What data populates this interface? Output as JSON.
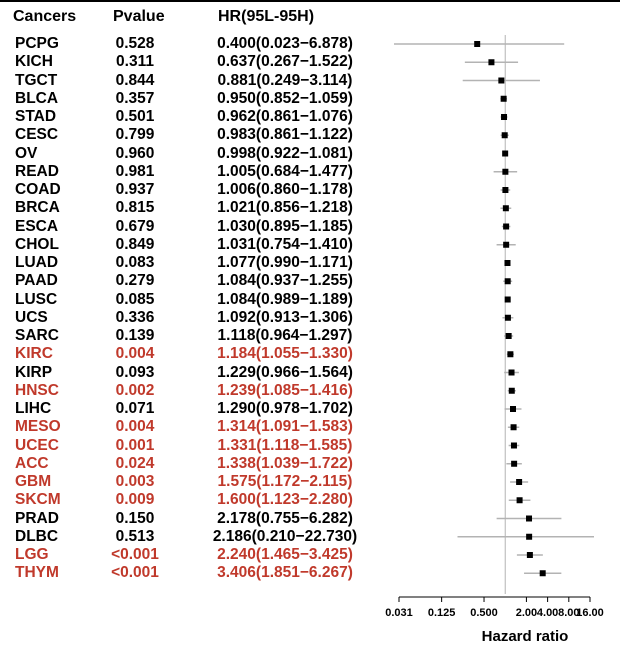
{
  "headers": {
    "cancer": "Cancers",
    "pvalue": "Pvalue",
    "hr": "HR(95L-95H)"
  },
  "colors": {
    "significant": "#c0392b",
    "normal": "#000000",
    "ci_line": "#b3b3b3",
    "ref_line": "#b3b3b3",
    "point": "#000000"
  },
  "chart_data": {
    "type": "forest",
    "xlabel": "Hazard ratio",
    "xscale": "log2",
    "xticks": [
      0.031,
      0.125,
      0.5,
      2.0,
      4.0,
      8.0,
      16.0
    ],
    "xtick_labels": [
      "0.031",
      "0.125",
      "0.500",
      "2.00",
      "4.00",
      "8.00",
      "16.00"
    ],
    "reference": 1,
    "rows": [
      {
        "cancer": "PCPG",
        "pvalue": "0.528",
        "hr_text": "0.400(0.023−6.878)",
        "hr": 0.4,
        "lo": 0.023,
        "hi": 6.878,
        "significant": false
      },
      {
        "cancer": "KICH",
        "pvalue": "0.311",
        "hr_text": "0.637(0.267−1.522)",
        "hr": 0.637,
        "lo": 0.267,
        "hi": 1.522,
        "significant": false
      },
      {
        "cancer": "TGCT",
        "pvalue": "0.844",
        "hr_text": "0.881(0.249−3.114)",
        "hr": 0.881,
        "lo": 0.249,
        "hi": 3.114,
        "significant": false
      },
      {
        "cancer": "BLCA",
        "pvalue": "0.357",
        "hr_text": "0.950(0.852−1.059)",
        "hr": 0.95,
        "lo": 0.852,
        "hi": 1.059,
        "significant": false
      },
      {
        "cancer": "STAD",
        "pvalue": "0.501",
        "hr_text": "0.962(0.861−1.076)",
        "hr": 0.962,
        "lo": 0.861,
        "hi": 1.076,
        "significant": false
      },
      {
        "cancer": "CESC",
        "pvalue": "0.799",
        "hr_text": "0.983(0.861−1.122)",
        "hr": 0.983,
        "lo": 0.861,
        "hi": 1.122,
        "significant": false
      },
      {
        "cancer": "OV",
        "pvalue": "0.960",
        "hr_text": "0.998(0.922−1.081)",
        "hr": 0.998,
        "lo": 0.922,
        "hi": 1.081,
        "significant": false
      },
      {
        "cancer": "READ",
        "pvalue": "0.981",
        "hr_text": "1.005(0.684−1.477)",
        "hr": 1.005,
        "lo": 0.684,
        "hi": 1.477,
        "significant": false
      },
      {
        "cancer": "COAD",
        "pvalue": "0.937",
        "hr_text": "1.006(0.860−1.178)",
        "hr": 1.006,
        "lo": 0.86,
        "hi": 1.178,
        "significant": false
      },
      {
        "cancer": "BRCA",
        "pvalue": "0.815",
        "hr_text": "1.021(0.856−1.218)",
        "hr": 1.021,
        "lo": 0.856,
        "hi": 1.218,
        "significant": false
      },
      {
        "cancer": "ESCA",
        "pvalue": "0.679",
        "hr_text": "1.030(0.895−1.185)",
        "hr": 1.03,
        "lo": 0.895,
        "hi": 1.185,
        "significant": false
      },
      {
        "cancer": "CHOL",
        "pvalue": "0.849",
        "hr_text": "1.031(0.754−1.410)",
        "hr": 1.031,
        "lo": 0.754,
        "hi": 1.41,
        "significant": false
      },
      {
        "cancer": "LUAD",
        "pvalue": "0.083",
        "hr_text": "1.077(0.990−1.171)",
        "hr": 1.077,
        "lo": 0.99,
        "hi": 1.171,
        "significant": false
      },
      {
        "cancer": "PAAD",
        "pvalue": "0.279",
        "hr_text": "1.084(0.937−1.255)",
        "hr": 1.084,
        "lo": 0.937,
        "hi": 1.255,
        "significant": false
      },
      {
        "cancer": "LUSC",
        "pvalue": "0.085",
        "hr_text": "1.084(0.989−1.189)",
        "hr": 1.084,
        "lo": 0.989,
        "hi": 1.189,
        "significant": false
      },
      {
        "cancer": "UCS",
        "pvalue": "0.336",
        "hr_text": "1.092(0.913−1.306)",
        "hr": 1.092,
        "lo": 0.913,
        "hi": 1.306,
        "significant": false
      },
      {
        "cancer": "SARC",
        "pvalue": "0.139",
        "hr_text": "1.118(0.964−1.297)",
        "hr": 1.118,
        "lo": 0.964,
        "hi": 1.297,
        "significant": false
      },
      {
        "cancer": "KIRC",
        "pvalue": "0.004",
        "hr_text": "1.184(1.055−1.330)",
        "hr": 1.184,
        "lo": 1.055,
        "hi": 1.33,
        "significant": true
      },
      {
        "cancer": "KIRP",
        "pvalue": "0.093",
        "hr_text": "1.229(0.966−1.564)",
        "hr": 1.229,
        "lo": 0.966,
        "hi": 1.564,
        "significant": false
      },
      {
        "cancer": "HNSC",
        "pvalue": "0.002",
        "hr_text": "1.239(1.085−1.416)",
        "hr": 1.239,
        "lo": 1.085,
        "hi": 1.416,
        "significant": true
      },
      {
        "cancer": "LIHC",
        "pvalue": "0.071",
        "hr_text": "1.290(0.978−1.702)",
        "hr": 1.29,
        "lo": 0.978,
        "hi": 1.702,
        "significant": false
      },
      {
        "cancer": "MESO",
        "pvalue": "0.004",
        "hr_text": "1.314(1.091−1.583)",
        "hr": 1.314,
        "lo": 1.091,
        "hi": 1.583,
        "significant": true
      },
      {
        "cancer": "UCEC",
        "pvalue": "0.001",
        "hr_text": "1.331(1.118−1.585)",
        "hr": 1.331,
        "lo": 1.118,
        "hi": 1.585,
        "significant": true
      },
      {
        "cancer": "ACC",
        "pvalue": "0.024",
        "hr_text": "1.338(1.039−1.722)",
        "hr": 1.338,
        "lo": 1.039,
        "hi": 1.722,
        "significant": true
      },
      {
        "cancer": "GBM",
        "pvalue": "0.003",
        "hr_text": "1.575(1.172−2.115)",
        "hr": 1.575,
        "lo": 1.172,
        "hi": 2.115,
        "significant": true
      },
      {
        "cancer": "SKCM",
        "pvalue": "0.009",
        "hr_text": "1.600(1.123−2.280)",
        "hr": 1.6,
        "lo": 1.123,
        "hi": 2.28,
        "significant": true
      },
      {
        "cancer": "PRAD",
        "pvalue": "0.150",
        "hr_text": "2.178(0.755−6.282)",
        "hr": 2.178,
        "lo": 0.755,
        "hi": 6.282,
        "significant": false
      },
      {
        "cancer": "DLBC",
        "pvalue": "0.513",
        "hr_text": "2.186(0.210−22.730)",
        "hr": 2.186,
        "lo": 0.21,
        "hi": 22.73,
        "significant": false
      },
      {
        "cancer": "LGG",
        "pvalue": "<0.001",
        "hr_text": "2.240(1.465−3.425)",
        "hr": 2.24,
        "lo": 1.465,
        "hi": 3.425,
        "significant": true
      },
      {
        "cancer": "THYM",
        "pvalue": "<0.001",
        "hr_text": "3.406(1.851−6.267)",
        "hr": 3.406,
        "lo": 1.851,
        "hi": 6.267,
        "significant": true
      }
    ]
  }
}
